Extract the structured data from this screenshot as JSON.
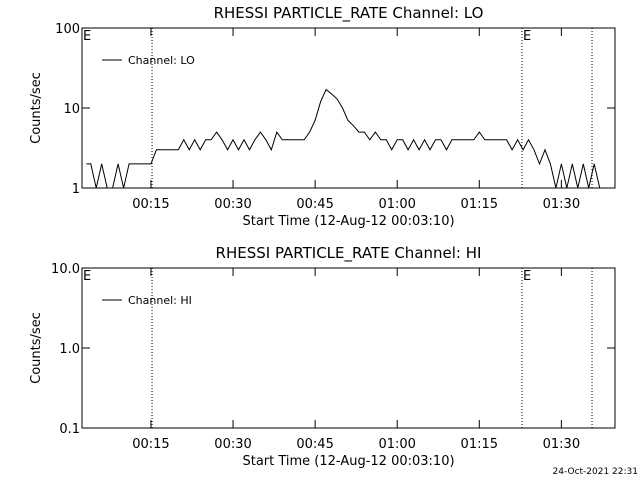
{
  "chart_data": [
    {
      "type": "line",
      "title": "RHESSI PARTICLE_RATE Channel: LO",
      "xlabel": "Start Time (12-Aug-12 00:03:10)",
      "ylabel": "Counts/sec",
      "log_y": true,
      "legend": "upper left",
      "xlim": [
        2.4,
        99.8
      ],
      "xticks": [
        {
          "value": 15,
          "label": "00:15"
        },
        {
          "value": 30,
          "label": "00:30"
        },
        {
          "value": 45,
          "label": "00:45"
        },
        {
          "value": 60,
          "label": "01:00"
        },
        {
          "value": 75,
          "label": "01:15"
        },
        {
          "value": 90,
          "label": "01:30"
        }
      ],
      "ylim": [
        1,
        100
      ],
      "yticks": [
        1,
        10,
        100
      ],
      "vlines": [
        15.2,
        82.8,
        95.6
      ],
      "annotations": [
        {
          "text": "E",
          "x": 2.4
        },
        {
          "text": "E",
          "x": 82.8
        }
      ],
      "series": [
        {
          "name": "Channel: LO",
          "color": "#000000",
          "x": [
            3.2,
            4,
            5,
            6,
            7,
            8,
            9,
            10,
            11,
            12,
            13,
            14,
            15,
            16,
            17,
            18,
            19,
            20,
            21,
            22,
            23,
            24,
            25,
            26,
            27,
            28,
            29,
            30,
            31,
            32,
            33,
            34,
            35,
            36,
            37,
            38,
            39,
            40,
            41,
            42,
            43,
            44,
            45,
            46,
            47,
            48,
            49,
            50,
            51,
            52,
            53,
            54,
            55,
            56,
            57,
            58,
            59,
            60,
            61,
            62,
            63,
            64,
            65,
            66,
            67,
            68,
            69,
            70,
            71,
            72,
            73,
            74,
            75,
            76,
            77,
            78,
            79,
            80,
            81,
            82,
            83,
            84,
            85,
            86,
            87,
            88,
            89,
            90,
            91,
            92,
            93,
            94,
            95,
            96,
            97
          ],
          "values": [
            2,
            2,
            1,
            2,
            1,
            1,
            2,
            1,
            2,
            2,
            2,
            2,
            2,
            3,
            3,
            3,
            3,
            3,
            4,
            3,
            4,
            3,
            4,
            4,
            5,
            4,
            3,
            4,
            3,
            4,
            3,
            4,
            5,
            4,
            3,
            5,
            4,
            4,
            4,
            4,
            4,
            5,
            7,
            12,
            17,
            15,
            13,
            10,
            7,
            6,
            5,
            5,
            4,
            5,
            4,
            4,
            3,
            4,
            4,
            3,
            4,
            3,
            4,
            3,
            4,
            4,
            3,
            4,
            4,
            4,
            4,
            4,
            5,
            4,
            4,
            4,
            4,
            4,
            3,
            4,
            3,
            4,
            3,
            2,
            3,
            2,
            1,
            2,
            1,
            2,
            1,
            2,
            1,
            2,
            1
          ]
        }
      ]
    },
    {
      "type": "line",
      "title": "RHESSI PARTICLE_RATE Channel: HI",
      "xlabel": "Start Time (12-Aug-12 00:03:10)",
      "ylabel": "Counts/sec",
      "log_y": true,
      "legend": "upper left",
      "xlim": [
        2.4,
        99.8
      ],
      "xticks": [
        {
          "value": 15,
          "label": "00:15"
        },
        {
          "value": 30,
          "label": "00:30"
        },
        {
          "value": 45,
          "label": "00:45"
        },
        {
          "value": 60,
          "label": "01:00"
        },
        {
          "value": 75,
          "label": "01:15"
        },
        {
          "value": 90,
          "label": "01:30"
        }
      ],
      "ylim": [
        0.1,
        10
      ],
      "yticks": [
        0.1,
        {
          "value": 1,
          "label": "1.0"
        },
        {
          "value": 10,
          "label": "10.0"
        }
      ],
      "vlines": [
        15.2,
        82.8,
        95.6
      ],
      "annotations": [
        {
          "text": "E",
          "x": 2.4
        },
        {
          "text": "E",
          "x": 82.8
        }
      ],
      "series": [
        {
          "name": "Channel: HI",
          "color": "#000000",
          "x": [],
          "values": []
        }
      ]
    }
  ],
  "footer": "24-Oct-2021 22:31"
}
